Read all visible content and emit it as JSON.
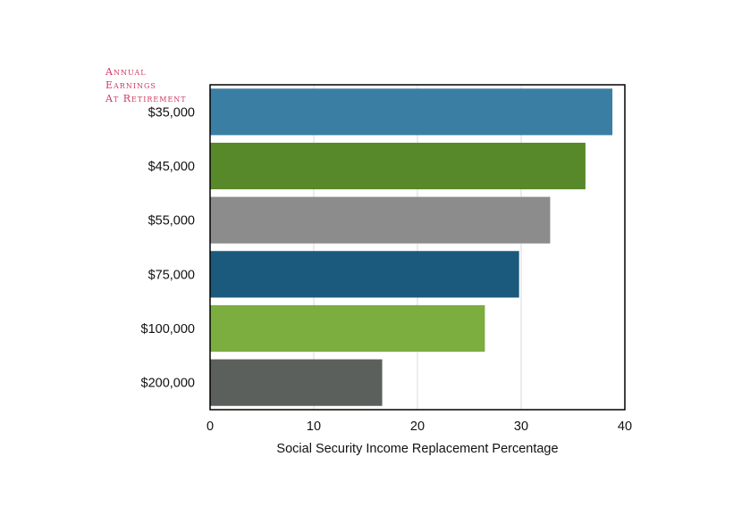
{
  "chart_data": {
    "type": "bar",
    "orientation": "horizontal",
    "title": "",
    "category_axis_title": [
      "Annual",
      "Earnings",
      "At Retirement"
    ],
    "categories": [
      "$35,000",
      "$45,000",
      "$55,000",
      "$75,000",
      "$100,000",
      "$200,000"
    ],
    "values": [
      38.8,
      36.2,
      32.8,
      29.8,
      26.5,
      16.6
    ],
    "bar_colors": [
      "#3a7fa3",
      "#578829",
      "#8c8c8c",
      "#1b5a7c",
      "#7bad3f",
      "#5c605d"
    ],
    "xlabel": "Social Security Income Replacement Percentage",
    "xlim": [
      0,
      40
    ],
    "xticks": [
      0,
      10,
      20,
      30,
      40
    ],
    "grid": "vertical",
    "legend": "none",
    "category_title_color": "#d03a62"
  }
}
